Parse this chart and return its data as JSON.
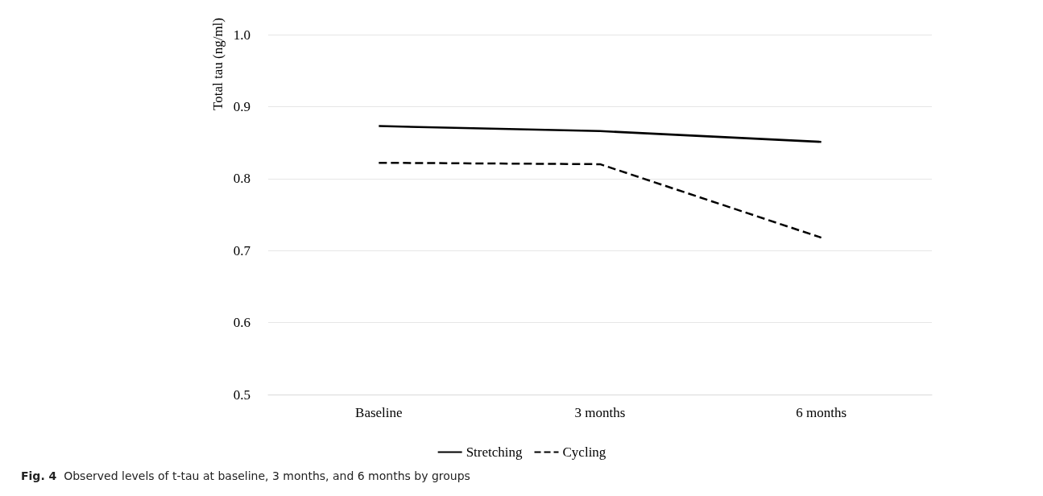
{
  "chart_data": {
    "type": "line",
    "ylabel": "Total tau (ng/ml)",
    "categories": [
      "Baseline",
      "3 months",
      "6 months"
    ],
    "series": [
      {
        "name": "Stretching",
        "color": "#000000",
        "values": [
          0.873,
          0.866,
          0.851
        ],
        "line_style": "solid"
      },
      {
        "name": "Cycling",
        "color": "#000000",
        "values": [
          0.822,
          0.82,
          0.718
        ],
        "line_style": "dashed"
      }
    ],
    "ylim": [
      0.5,
      1.0
    ],
    "yticks": [
      0.5,
      0.6,
      0.7,
      0.8,
      0.9,
      {
        "value": 1.0,
        "label": "1.0"
      }
    ],
    "grid": "y",
    "legend": "bottom",
    "marker": "none",
    "annotations": [
      "Fig. 4 Observed levels of t-tau at baseline, 3 months, and 6 months by groups"
    ]
  }
}
